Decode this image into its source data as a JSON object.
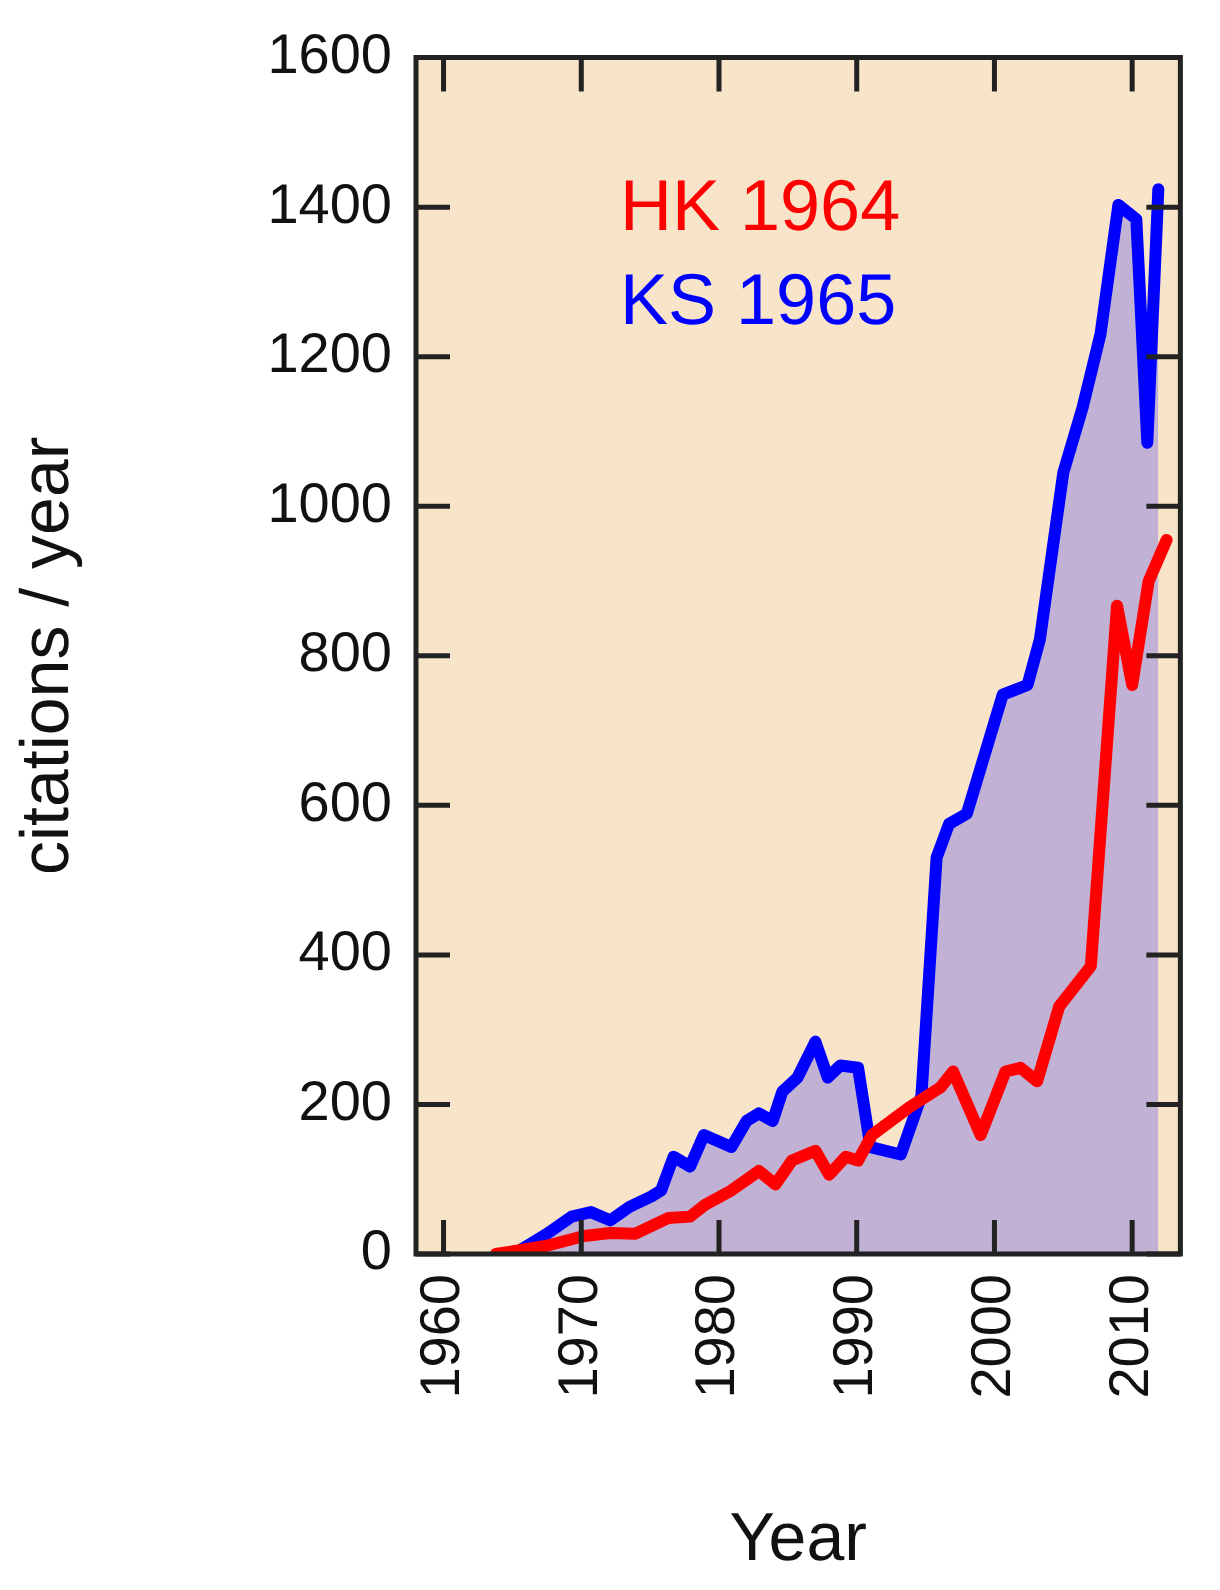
{
  "chart_data": {
    "type": "line",
    "xlabel": "Year",
    "ylabel": "citations / year",
    "xlim": [
      1958,
      2013.5
    ],
    "xticks": [
      1960,
      1970,
      1980,
      1990,
      2000,
      2010
    ],
    "ylim": [
      0,
      1600
    ],
    "yticks": [
      0,
      200,
      400,
      600,
      800,
      1000,
      1200,
      1400,
      1600
    ],
    "grid": false,
    "legend": "top left",
    "marker": "none",
    "line_style": "solid",
    "series": [
      {
        "name": "HK 1964",
        "color": "#ff0000",
        "x": [
          1963.8,
          1967.5,
          1970.2,
          1972.1,
          1973.9,
          1976.3,
          1977.9,
          1979,
          1980.9,
          1982.9,
          1984.1,
          1985.3,
          1987,
          1988,
          1989.2,
          1990.1,
          1991.1,
          1993.8,
          1996.1,
          1997,
          1999,
          2000.8,
          2001.9,
          2003.1,
          2004.7,
          2007,
          2008.9,
          2010,
          2011.2,
          2012.5
        ],
        "values": [
          0,
          11,
          24,
          28,
          27,
          48,
          50,
          66,
          85,
          111,
          93,
          125,
          138,
          106,
          130,
          125,
          159,
          196,
          223,
          244,
          159,
          244,
          249,
          231,
          331,
          385,
          867,
          761,
          900,
          955
        ]
      },
      {
        "name": "KS 1965",
        "type": "area",
        "color": "#0000ff",
        "x": [
          1965.1,
          1967.5,
          1969.3,
          1970.7,
          1972.1,
          1973.5,
          1975.1,
          1975.8,
          1976.7,
          1977.9,
          1978.9,
          1980.9,
          1982,
          1982.9,
          1983.9,
          1984.6,
          1985.7,
          1987,
          1987.9,
          1988.8,
          1990.1,
          1991,
          1993.2,
          1994.7,
          1995.8,
          1996.7,
          1998,
          2000.6,
          2002.4,
          2003.3,
          2005,
          2006.4,
          2007.7,
          2009,
          2010.3,
          2011.1,
          2011.9
        ],
        "values": [
          0,
          27,
          50,
          56,
          45,
          63,
          77,
          85,
          130,
          117,
          159,
          143,
          178,
          188,
          178,
          217,
          236,
          284,
          236,
          252,
          249,
          143,
          133,
          212,
          530,
          575,
          589,
          748,
          761,
          822,
          1045,
          1132,
          1230,
          1403,
          1384,
          1085,
          1424
        ]
      }
    ]
  }
}
